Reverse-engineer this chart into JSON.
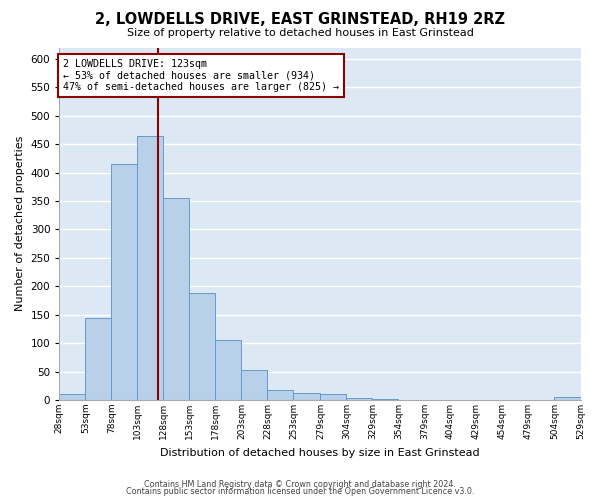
{
  "title": "2, LOWDELLS DRIVE, EAST GRINSTEAD, RH19 2RZ",
  "subtitle": "Size of property relative to detached houses in East Grinstead",
  "xlabel": "Distribution of detached houses by size in East Grinstead",
  "ylabel": "Number of detached properties",
  "bar_color": "#b8d0ea",
  "bar_edge_color": "#6699cc",
  "background_color": "#dce9f5",
  "grid_color": "#ffffff",
  "bin_edges": [
    28,
    53,
    78,
    103,
    128,
    153,
    178,
    203,
    228,
    253,
    279,
    304,
    329,
    354,
    379,
    404,
    429,
    454,
    479,
    504,
    529
  ],
  "bin_labels": [
    "28sqm",
    "53sqm",
    "78sqm",
    "103sqm",
    "128sqm",
    "153sqm",
    "178sqm",
    "203sqm",
    "228sqm",
    "253sqm",
    "279sqm",
    "304sqm",
    "329sqm",
    "354sqm",
    "379sqm",
    "404sqm",
    "429sqm",
    "454sqm",
    "479sqm",
    "504sqm",
    "529sqm"
  ],
  "counts": [
    10,
    145,
    415,
    465,
    355,
    188,
    105,
    53,
    18,
    13,
    10,
    4,
    1,
    0,
    0,
    0,
    0,
    0,
    0,
    5
  ],
  "property_size": 123,
  "vline_x": 123,
  "vline_color": "#8b0000",
  "annotation_box_color": "#8b0000",
  "annotation_line1": "2 LOWDELLS DRIVE: 123sqm",
  "annotation_line2": "← 53% of detached houses are smaller (934)",
  "annotation_line3": "47% of semi-detached houses are larger (825) →",
  "ylim": [
    0,
    620
  ],
  "yticks": [
    0,
    50,
    100,
    150,
    200,
    250,
    300,
    350,
    400,
    450,
    500,
    550,
    600
  ],
  "footer1": "Contains HM Land Registry data © Crown copyright and database right 2024.",
  "footer2": "Contains public sector information licensed under the Open Government Licence v3.0."
}
